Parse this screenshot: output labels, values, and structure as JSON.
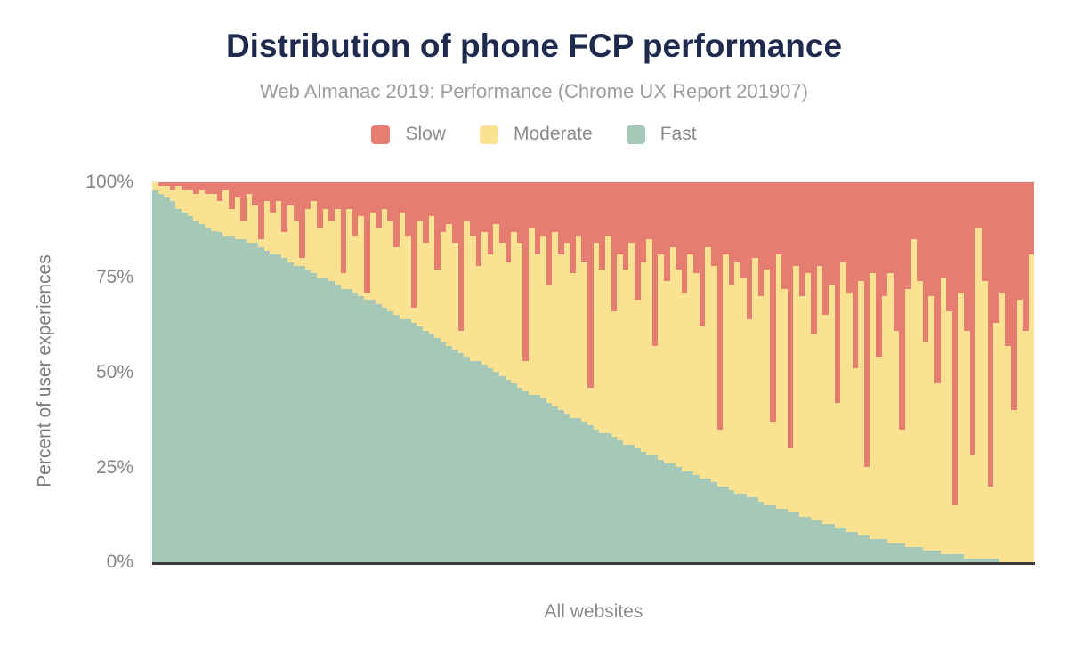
{
  "chart_data": {
    "type": "bar",
    "variant": "stacked-100-percent-column",
    "title": "Distribution of phone FCP performance",
    "subtitle": "Web Almanac 2019: Performance (Chrome UX Report 201907)",
    "xlabel": "All websites",
    "ylabel": "Percent of user experiences",
    "y_ticks": [
      "100%",
      "75%",
      "50%",
      "25%",
      "0%"
    ],
    "ylim": [
      0,
      100
    ],
    "legend_position": "top",
    "grid": "top-100%-line-only",
    "note": "Columns are individual websites sorted by descending fast share; 150 sampled columns, values in percent estimated from pixels; each column sums to 100.",
    "stack_order_top_to_bottom": [
      "Slow",
      "Moderate",
      "Fast"
    ],
    "series": [
      {
        "name": "Slow",
        "color": "#e57d72",
        "values": [
          0,
          1,
          1,
          2,
          1,
          2,
          2,
          3,
          2,
          3,
          3,
          5,
          2,
          7,
          4,
          10,
          3,
          6,
          15,
          5,
          8,
          5,
          13,
          6,
          10,
          20,
          7,
          5,
          12,
          7,
          10,
          7,
          24,
          7,
          14,
          9,
          29,
          8,
          12,
          7,
          10,
          17,
          8,
          14,
          33,
          10,
          16,
          9,
          23,
          13,
          11,
          16,
          39,
          10,
          14,
          22,
          13,
          19,
          11,
          16,
          21,
          13,
          16,
          47,
          12,
          19,
          14,
          27,
          13,
          19,
          16,
          24,
          14,
          21,
          54,
          16,
          23,
          14,
          34,
          19,
          23,
          16,
          31,
          21,
          15,
          43,
          19,
          26,
          17,
          23,
          29,
          19,
          24,
          38,
          17,
          22,
          65,
          19,
          27,
          21,
          25,
          36,
          20,
          30,
          23,
          63,
          19,
          28,
          70,
          22,
          30,
          24,
          40,
          22,
          35,
          27,
          58,
          21,
          29,
          49,
          26,
          75,
          24,
          46,
          30,
          24,
          39,
          65,
          28,
          15,
          26,
          42,
          30,
          53,
          25,
          34,
          85,
          29,
          39,
          72,
          12,
          26,
          80,
          37,
          29,
          43,
          60,
          31,
          39,
          19
        ]
      },
      {
        "name": "Moderate",
        "color": "#fae292",
        "values": [
          2,
          2,
          3,
          3,
          6,
          6,
          7,
          7,
          9,
          9,
          10,
          8,
          12,
          7,
          11,
          5,
          13,
          10,
          2,
          13,
          11,
          14,
          7,
          15,
          12,
          2,
          16,
          19,
          13,
          18,
          16,
          20,
          4,
          21,
          15,
          21,
          2,
          23,
          20,
          26,
          24,
          18,
          28,
          22,
          4,
          28,
          23,
          31,
          18,
          29,
          32,
          28,
          6,
          36,
          33,
          25,
          35,
          30,
          39,
          35,
          31,
          40,
          38,
          8,
          44,
          37,
          43,
          31,
          46,
          41,
          45,
          38,
          48,
          42,
          10,
          49,
          43,
          52,
          33,
          49,
          46,
          53,
          39,
          50,
          57,
          29,
          54,
          48,
          57,
          52,
          47,
          57,
          53,
          40,
          61,
          57,
          15,
          61,
          54,
          61,
          57,
          47,
          63,
          54,
          62,
          22,
          67,
          58,
          17,
          65,
          58,
          64,
          49,
          67,
          55,
          63,
          33,
          70,
          63,
          43,
          67,
          18,
          70,
          48,
          64,
          71,
          56,
          30,
          68,
          81,
          70,
          55,
          67,
          44,
          73,
          64,
          13,
          69,
          60,
          27,
          87,
          73,
          19,
          62,
          71,
          57,
          40,
          69,
          61,
          81
        ]
      },
      {
        "name": "Fast",
        "color": "#a6c8b8",
        "values": [
          98,
          97,
          96,
          95,
          93,
          92,
          91,
          90,
          89,
          88,
          87,
          87,
          86,
          86,
          85,
          85,
          84,
          84,
          83,
          82,
          81,
          81,
          80,
          79,
          78,
          78,
          77,
          76,
          75,
          75,
          74,
          73,
          72,
          72,
          71,
          70,
          69,
          69,
          68,
          67,
          66,
          65,
          64,
          64,
          63,
          62,
          61,
          60,
          59,
          58,
          57,
          56,
          55,
          54,
          53,
          53,
          52,
          51,
          50,
          49,
          48,
          47,
          46,
          45,
          44,
          44,
          43,
          42,
          41,
          40,
          39,
          38,
          38,
          37,
          36,
          35,
          34,
          34,
          33,
          32,
          31,
          31,
          30,
          29,
          28,
          28,
          27,
          26,
          26,
          25,
          24,
          24,
          23,
          22,
          22,
          21,
          20,
          20,
          19,
          18,
          18,
          17,
          17,
          16,
          15,
          15,
          14,
          14,
          13,
          13,
          12,
          12,
          11,
          11,
          10,
          10,
          9,
          9,
          8,
          8,
          7,
          7,
          6,
          6,
          6,
          5,
          5,
          5,
          4,
          4,
          4,
          3,
          3,
          3,
          2,
          2,
          2,
          2,
          1,
          1,
          1,
          1,
          1,
          1,
          0,
          0,
          0,
          0,
          0,
          0
        ]
      }
    ]
  },
  "colors": {
    "title": "#1e2b4f",
    "subtitle": "#9d9d9d",
    "tick_text": "#868686",
    "axis_label_text": "#7d7d7d",
    "axis_line": "#3a3a3e",
    "top_gridline": "#ececec",
    "background": "#ffffff"
  }
}
